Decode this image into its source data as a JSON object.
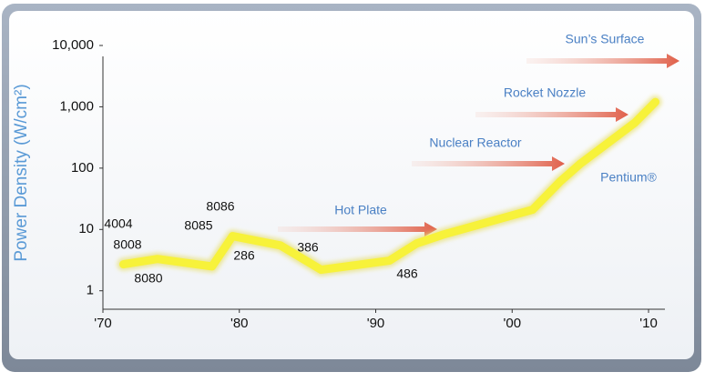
{
  "chart_data": {
    "type": "line",
    "ylabel": "Power Density (W/cm²)",
    "x": [
      1971.5,
      1974,
      1978,
      1979.5,
      1983,
      1986,
      1991,
      1993,
      1995,
      2001.5,
      2003.5,
      2005,
      2009,
      2010.5
    ],
    "values": [
      2.7,
      3.3,
      2.5,
      7.8,
      5.5,
      2.2,
      3.1,
      5.9,
      8.3,
      21,
      60,
      118,
      550,
      1200
    ],
    "color": "#f7f23a",
    "log_y": true,
    "xlim": [
      1970,
      2011
    ],
    "xticks": [
      {
        "value": 1970,
        "label": "'70"
      },
      {
        "value": 1980,
        "label": "'80"
      },
      {
        "value": 1990,
        "label": "'90"
      },
      {
        "value": 2000,
        "label": "'00"
      },
      {
        "value": 2010,
        "label": "'10"
      }
    ],
    "ylim": [
      0.5,
      10000
    ],
    "yticks": [
      1,
      10,
      100,
      {
        "value": 1000,
        "label": "1,000"
      },
      {
        "value": 10000,
        "label": "10,000"
      }
    ],
    "annotations": [
      "4004",
      "8008",
      "8080",
      "8085",
      "8086",
      "286",
      "386",
      "486",
      "Pentium®"
    ],
    "heat_levels": [
      "Hot Plate",
      "Nuclear Reactor",
      "Rocket Nozzle",
      "Sun’s Surface"
    ]
  }
}
